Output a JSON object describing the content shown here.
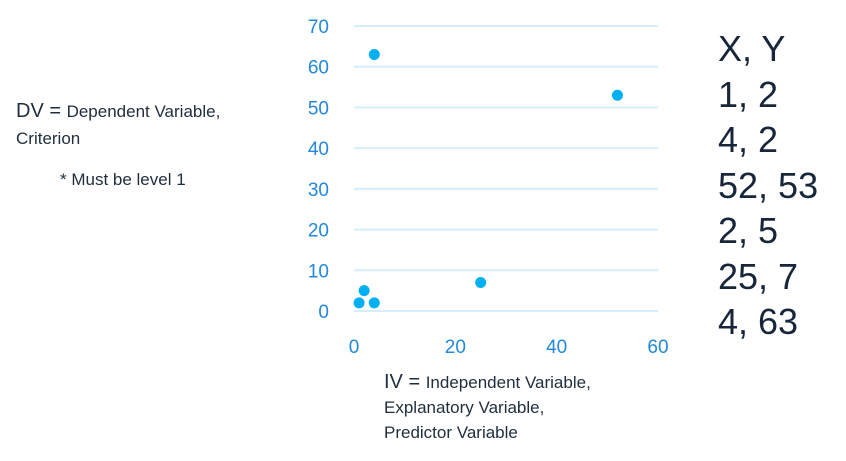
{
  "chart_data": {
    "type": "scatter",
    "points": [
      {
        "x": 1,
        "y": 2
      },
      {
        "x": 4,
        "y": 2
      },
      {
        "x": 52,
        "y": 53
      },
      {
        "x": 2,
        "y": 5
      },
      {
        "x": 25,
        "y": 7
      },
      {
        "x": 4,
        "y": 63
      }
    ],
    "xlim": [
      0,
      60
    ],
    "ylim": [
      0,
      70
    ],
    "xticks": [
      "0",
      "20",
      "40",
      "60"
    ],
    "yticks": [
      "0",
      "10",
      "20",
      "30",
      "40",
      "50",
      "60",
      "70"
    ],
    "grid": "horizontal",
    "colors": {
      "point": "#00b0f0",
      "grid": "#d6eefb",
      "tick": "#2388dc"
    }
  },
  "labels": {
    "dv_prefix": "DV = ",
    "dv_line1": "Dependent Variable,",
    "dv_line2": "Criterion",
    "must": "* Must be level 1",
    "iv_prefix": "IV = ",
    "iv_line1": "Independent Variable,",
    "iv_line2": "Explanatory Variable,",
    "iv_line3": "Predictor Variable"
  },
  "table": {
    "header": "X, Y",
    "rows": [
      "1, 2",
      "4, 2",
      "52, 53",
      "2, 5",
      "25, 7",
      "4, 63"
    ]
  }
}
